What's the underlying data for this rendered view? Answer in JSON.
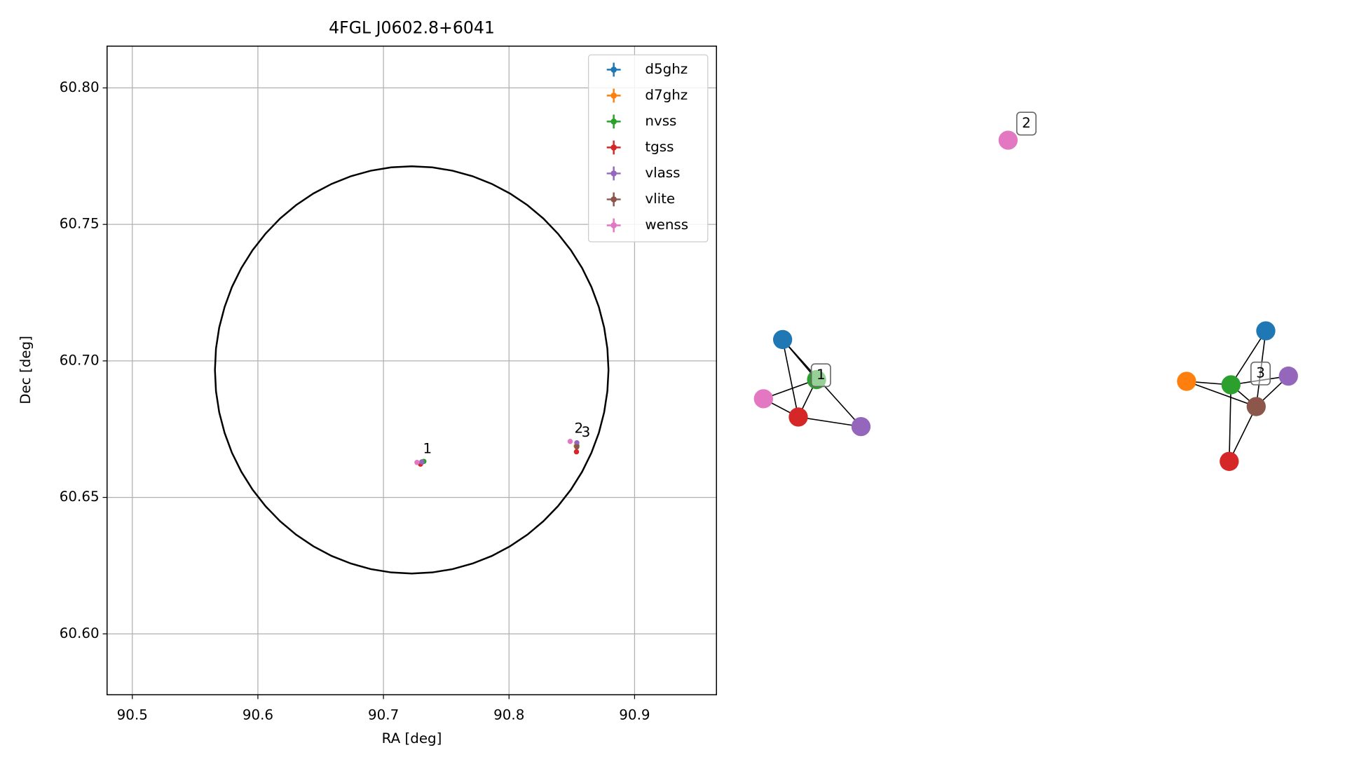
{
  "chart_data": {
    "type": "scatter",
    "title": "4FGL J0602.8+6041",
    "xlabel": "RA [deg]",
    "ylabel": "Dec [deg]",
    "xlim": [
      90.4799,
      90.9652
    ],
    "ylim": [
      60.5777,
      60.8153
    ],
    "xticks": [
      90.5,
      90.6,
      90.7,
      90.8,
      90.9
    ],
    "yticks": [
      {
        "value": 60.6,
        "label": "60.60"
      },
      60.65,
      {
        "value": 60.7,
        "label": "60.70"
      },
      60.75,
      {
        "value": 60.8,
        "label": "60.80"
      }
    ],
    "grid": true,
    "legend": "upper right",
    "series": [
      {
        "name": "d5ghz",
        "color": "#1f77b4",
        "x": [
          90.731,
          90.854
        ],
        "values": [
          60.663,
          60.669
        ]
      },
      {
        "name": "d7ghz",
        "color": "#ff7f0e",
        "x": [
          90.8535
        ],
        "values": [
          60.6688
        ]
      },
      {
        "name": "nvss",
        "color": "#2ca02c",
        "x": [
          90.7322,
          90.854
        ],
        "values": [
          60.6632,
          60.669
        ]
      },
      {
        "name": "tgss",
        "color": "#d62728",
        "x": [
          90.7295,
          90.8537
        ],
        "values": [
          60.6622,
          60.6667
        ]
      },
      {
        "name": "vlass",
        "color": "#9467bd",
        "x": [
          90.7305,
          90.854
        ],
        "values": [
          60.663,
          60.67
        ]
      },
      {
        "name": "vlite",
        "color": "#8c564b",
        "x": [
          90.854
        ],
        "values": [
          60.6685
        ]
      },
      {
        "name": "wenss",
        "color": "#e377c2",
        "x": [
          90.7267,
          90.8487
        ],
        "values": [
          60.6628,
          60.6705
        ]
      }
    ],
    "region": {
      "center": [
        90.7225,
        60.6967
      ],
      "ra_radius": 0.1567,
      "dec_radius": 0.0746
    },
    "annotations": [
      {
        "text": "1",
        "x": 90.735,
        "y": 60.6676
      },
      {
        "text": "2",
        "x": 90.8556,
        "y": 60.675
      },
      {
        "text": "3",
        "x": 90.8612,
        "y": 60.6737
      }
    ]
  },
  "network": {
    "clusters": [
      {
        "label": "1"
      },
      {
        "label": "2"
      },
      {
        "label": "3"
      }
    ]
  }
}
